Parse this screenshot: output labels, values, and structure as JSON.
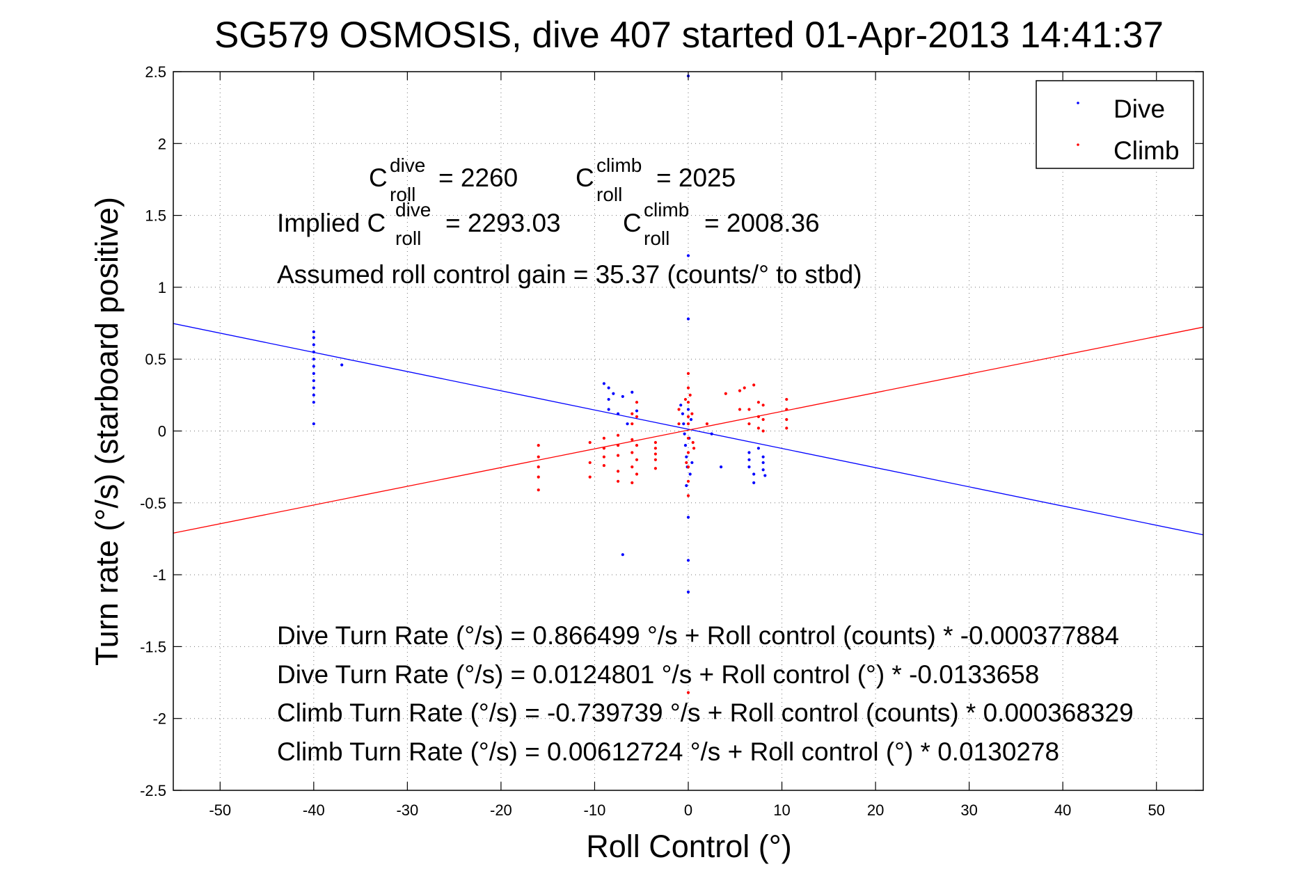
{
  "chart_data": {
    "type": "scatter",
    "title": "SG579 OSMOSIS, dive 407 started 01-Apr-2013 14:41:37",
    "xlabel": "Roll Control (°)",
    "ylabel": "Turn rate (°/s) (starboard positive)",
    "xlim": [
      -55,
      55
    ],
    "ylim": [
      -2.5,
      2.5
    ],
    "grid": true,
    "legend_position": "top-right",
    "x_ticks": [
      -50,
      -40,
      -30,
      -20,
      -10,
      0,
      10,
      20,
      30,
      40,
      50
    ],
    "y_ticks": [
      2.5,
      2,
      1.5,
      1,
      0.5,
      0,
      -0.5,
      -1,
      -1.5,
      -2,
      -2.5
    ],
    "series": [
      {
        "name": "Dive",
        "color": "#0000ff",
        "points": [
          [
            -40,
            0.05
          ],
          [
            -40,
            0.2
          ],
          [
            -40,
            0.25
          ],
          [
            -40,
            0.3
          ],
          [
            -40,
            0.35
          ],
          [
            -40,
            0.4
          ],
          [
            -40,
            0.45
          ],
          [
            -40,
            0.5
          ],
          [
            -40,
            0.55
          ],
          [
            -40,
            0.6
          ],
          [
            -40,
            0.65
          ],
          [
            -40,
            0.69
          ],
          [
            -37,
            0.46
          ],
          [
            -9,
            0.33
          ],
          [
            -8.5,
            0.3
          ],
          [
            -8.5,
            0.22
          ],
          [
            -8.5,
            0.15
          ],
          [
            -8,
            0.26
          ],
          [
            -7.5,
            0.12
          ],
          [
            -7,
            0.24
          ],
          [
            -6.5,
            0.05
          ],
          [
            -6,
            0.27
          ],
          [
            -5.5,
            0.14
          ],
          [
            -7,
            -0.86
          ],
          [
            -0.8,
            0.18
          ],
          [
            -0.6,
            0.12
          ],
          [
            -0.5,
            0.05
          ],
          [
            -0.4,
            -0.02
          ],
          [
            -0.3,
            -0.1
          ],
          [
            -0.2,
            -0.18
          ],
          [
            -0.1,
            -0.25
          ],
          [
            0,
            0.15
          ],
          [
            0.1,
            -0.05
          ],
          [
            0.2,
            -0.3
          ],
          [
            0.3,
            0.08
          ],
          [
            -0.2,
            -0.38
          ],
          [
            0.4,
            -0.22
          ],
          [
            0,
            0.78
          ],
          [
            0,
            1.22
          ],
          [
            0,
            2.47
          ],
          [
            0,
            -0.6
          ],
          [
            0,
            -0.9
          ],
          [
            0,
            -1.12
          ],
          [
            2.5,
            -0.02
          ],
          [
            3.5,
            -0.25
          ],
          [
            6.5,
            -0.15
          ],
          [
            6.5,
            -0.2
          ],
          [
            6.5,
            -0.25
          ],
          [
            7,
            -0.3
          ],
          [
            7,
            -0.36
          ],
          [
            7.5,
            -0.12
          ],
          [
            8,
            -0.18
          ],
          [
            8,
            -0.22
          ],
          [
            8,
            -0.27
          ],
          [
            8.2,
            -0.31
          ]
        ]
      },
      {
        "name": "Climb",
        "color": "#ff0000",
        "points": [
          [
            -16,
            -0.1
          ],
          [
            -16,
            -0.18
          ],
          [
            -16,
            -0.25
          ],
          [
            -16,
            -0.32
          ],
          [
            -16,
            -0.41
          ],
          [
            -10.5,
            -0.08
          ],
          [
            -10.5,
            -0.22
          ],
          [
            -10.5,
            -0.32
          ],
          [
            -9,
            -0.05
          ],
          [
            -9,
            -0.12
          ],
          [
            -9,
            -0.18
          ],
          [
            -9,
            -0.24
          ],
          [
            -7.5,
            -0.03
          ],
          [
            -7.5,
            -0.1
          ],
          [
            -7.5,
            -0.17
          ],
          [
            -7.5,
            -0.28
          ],
          [
            -7.5,
            -0.35
          ],
          [
            -6,
            0.12
          ],
          [
            -6,
            0.05
          ],
          [
            -6,
            -0.06
          ],
          [
            -6,
            -0.15
          ],
          [
            -6,
            -0.25
          ],
          [
            -6,
            -0.36
          ],
          [
            -5.5,
            0.2
          ],
          [
            -5.5,
            0.1
          ],
          [
            -5.5,
            -0.1
          ],
          [
            -5.5,
            -0.2
          ],
          [
            -5.5,
            -0.3
          ],
          [
            -3.5,
            -0.08
          ],
          [
            -3.5,
            -0.12
          ],
          [
            -3.5,
            -0.16
          ],
          [
            -3.5,
            -0.2
          ],
          [
            -3.5,
            -0.26
          ],
          [
            -1,
            0.15
          ],
          [
            -1,
            0.05
          ],
          [
            0,
            0.4
          ],
          [
            0,
            0.3
          ],
          [
            0,
            0.2
          ],
          [
            0,
            0.1
          ],
          [
            0,
            0.05
          ],
          [
            0,
            -0.05
          ],
          [
            0,
            -0.15
          ],
          [
            0,
            -0.25
          ],
          [
            0,
            -0.35
          ],
          [
            0,
            -0.45
          ],
          [
            0,
            -1.82
          ],
          [
            0.2,
            0.25
          ],
          [
            0.4,
            0.12
          ],
          [
            0.5,
            -0.08
          ],
          [
            0.6,
            -0.12
          ],
          [
            -0.3,
            0.22
          ],
          [
            -0.2,
            -0.22
          ],
          [
            2,
            0.05
          ],
          [
            4,
            0.26
          ],
          [
            5.5,
            0.28
          ],
          [
            5.5,
            0.15
          ],
          [
            6,
            0.3
          ],
          [
            6.5,
            0.15
          ],
          [
            6.5,
            0.05
          ],
          [
            7,
            0.32
          ],
          [
            7.5,
            0.2
          ],
          [
            7.5,
            0.1
          ],
          [
            7.5,
            0.02
          ],
          [
            8,
            0.18
          ],
          [
            8,
            0.08
          ],
          [
            8,
            0.0
          ],
          [
            10.5,
            0.22
          ],
          [
            10.5,
            0.15
          ],
          [
            10.5,
            0.08
          ],
          [
            10.5,
            0.02
          ]
        ]
      }
    ],
    "fit_lines": [
      {
        "series": "Dive",
        "intercept": 0.0124801,
        "slope": -0.0133658,
        "color": "#0000ff"
      },
      {
        "series": "Climb",
        "intercept": 0.00612724,
        "slope": 0.0130278,
        "color": "#ff0000"
      }
    ],
    "annotations": {
      "c_roll_dive": {
        "prefix": "C",
        "sup": "dive",
        "sub": "roll",
        "value": "= 2260"
      },
      "c_roll_climb": {
        "prefix": "C",
        "sup": "climb",
        "sub": "roll",
        "value": "= 2025"
      },
      "implied_dive": {
        "prefix": "Implied C",
        "sup": "dive",
        "sub": "roll",
        "value": "= 2293.03"
      },
      "implied_climb": {
        "prefix": "C",
        "sup": "climb",
        "sub": "roll",
        "value": "= 2008.36"
      },
      "gain": "Assumed roll control gain = 35.37 (counts/° to stbd)",
      "eq1": "Dive Turn Rate (°/s) = 0.866499 °/s + Roll control (counts) * -0.000377884",
      "eq2": "Dive Turn Rate (°/s) = 0.0124801 °/s + Roll control (°) * -0.0133658",
      "eq3": "Climb Turn Rate (°/s) = -0.739739 °/s + Roll control (counts) * 0.000368329",
      "eq4": "Climb Turn Rate (°/s) = 0.00612724 °/s + Roll control (°) * 0.0130278"
    }
  }
}
